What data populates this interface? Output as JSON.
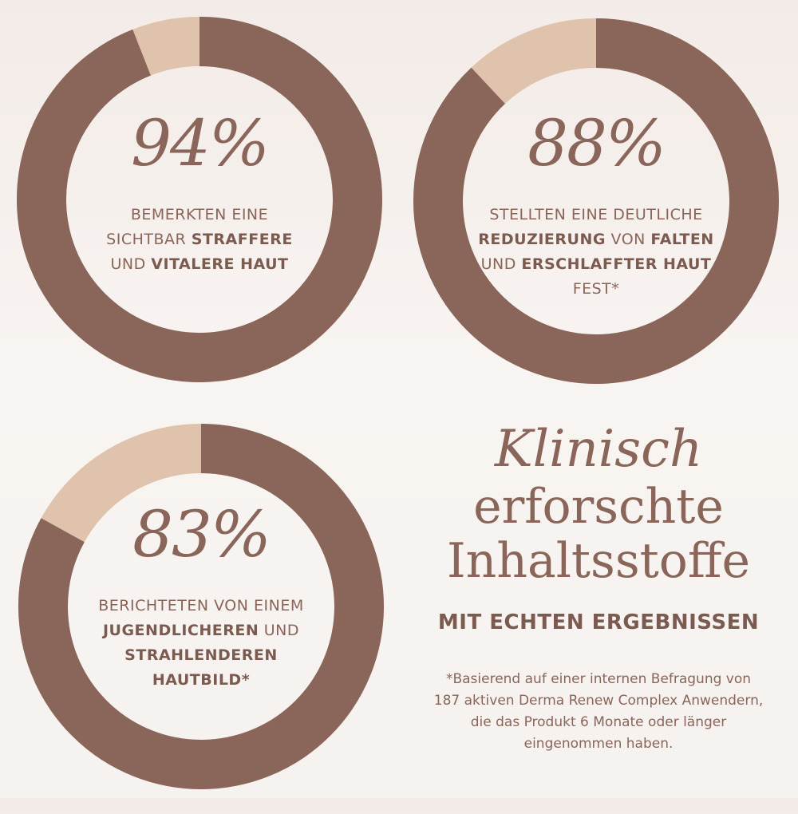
{
  "colors": {
    "filled": "#8a6559",
    "remainder": "#dfc3ad",
    "text": "#8a6559",
    "bold_text": "#7b5a50",
    "background": "#f6f2ef"
  },
  "chart_data": [
    {
      "type": "pie",
      "variant": "donut",
      "value": 94,
      "max": 100,
      "center_label": "94%",
      "description": [
        [
          {
            "t": "BEMERKTEN EINE",
            "b": false
          }
        ],
        [
          {
            "t": "SICHTBAR ",
            "b": false
          },
          {
            "t": "STRAFFERE",
            "b": true
          }
        ],
        [
          {
            "t": "UND ",
            "b": false
          },
          {
            "t": "VITALERE HAUT",
            "b": true
          }
        ]
      ]
    },
    {
      "type": "pie",
      "variant": "donut",
      "value": 88,
      "max": 100,
      "center_label": "88%",
      "description": [
        [
          {
            "t": "STELLTEN EINE DEUTLICHE",
            "b": false
          }
        ],
        [
          {
            "t": "REDUZIERUNG",
            "b": true
          },
          {
            "t": " VON ",
            "b": false
          },
          {
            "t": "FALTEN",
            "b": true
          }
        ],
        [
          {
            "t": "UND ",
            "b": false
          },
          {
            "t": "ERSCHLAFFTER HAUT",
            "b": true
          }
        ],
        [
          {
            "t": "FEST*",
            "b": false
          }
        ]
      ]
    },
    {
      "type": "pie",
      "variant": "donut",
      "value": 83,
      "max": 100,
      "center_label": "83%",
      "description": [
        [
          {
            "t": "BERICHTETEN VON EINEM",
            "b": false
          }
        ],
        [
          {
            "t": "JUGENDLICHEREN",
            "b": true
          },
          {
            "t": " UND",
            "b": false
          }
        ],
        [
          {
            "t": "STRAHLENDEREN",
            "b": true
          }
        ],
        [
          {
            "t": "HAUTBILD*",
            "b": true
          }
        ]
      ]
    }
  ],
  "headline": {
    "line1": "Klinisch",
    "line2": "erforschte",
    "line3": "Inhaltsstoffe",
    "subline": "MIT ECHTEN ERGEBNISSEN"
  },
  "footnote": {
    "lines": [
      "*Basierend auf einer internen Befragung von",
      "187 aktiven Derma Renew Complex Anwendern,",
      "die das Produkt 6 Monate oder länger",
      "eingenommen haben."
    ]
  }
}
